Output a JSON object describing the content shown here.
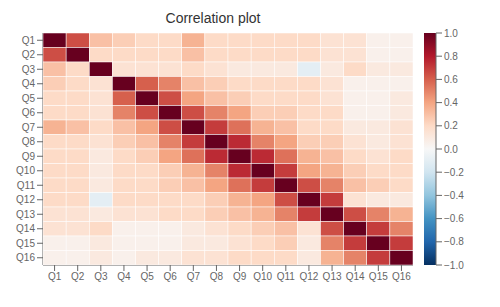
{
  "chart_data": {
    "type": "heatmap",
    "title": "Correlation plot",
    "categories": [
      "Q1",
      "Q2",
      "Q3",
      "Q4",
      "Q5",
      "Q6",
      "Q7",
      "Q8",
      "Q9",
      "Q10",
      "Q11",
      "Q12",
      "Q13",
      "Q14",
      "Q15",
      "Q16"
    ],
    "matrix": [
      [
        1.0,
        0.65,
        0.3,
        0.25,
        0.2,
        0.2,
        0.35,
        0.2,
        0.2,
        0.2,
        0.2,
        0.2,
        0.15,
        0.15,
        0.05,
        0.05
      ],
      [
        0.65,
        1.0,
        0.2,
        0.2,
        0.2,
        0.2,
        0.3,
        0.2,
        0.2,
        0.2,
        0.2,
        0.2,
        0.15,
        0.15,
        0.05,
        0.05
      ],
      [
        0.3,
        0.2,
        1.0,
        0.15,
        0.15,
        0.15,
        0.2,
        0.15,
        0.1,
        0.1,
        0.1,
        -0.1,
        0.1,
        0.2,
        0.1,
        0.1
      ],
      [
        0.25,
        0.2,
        0.15,
        1.0,
        0.6,
        0.5,
        0.3,
        0.25,
        0.2,
        0.2,
        0.2,
        0.2,
        0.15,
        0.05,
        0.05,
        0.05
      ],
      [
        0.2,
        0.2,
        0.15,
        0.6,
        1.0,
        0.65,
        0.4,
        0.3,
        0.25,
        0.2,
        0.2,
        0.2,
        0.15,
        0.05,
        0.05,
        0.1
      ],
      [
        0.2,
        0.2,
        0.15,
        0.5,
        0.65,
        1.0,
        0.65,
        0.5,
        0.4,
        0.25,
        0.25,
        0.2,
        0.2,
        0.05,
        0.05,
        0.1
      ],
      [
        0.35,
        0.3,
        0.2,
        0.3,
        0.4,
        0.65,
        1.0,
        0.7,
        0.55,
        0.35,
        0.3,
        0.2,
        0.2,
        0.1,
        0.1,
        0.15
      ],
      [
        0.2,
        0.2,
        0.15,
        0.25,
        0.3,
        0.5,
        0.7,
        1.0,
        0.75,
        0.5,
        0.4,
        0.25,
        0.25,
        0.15,
        0.1,
        0.15
      ],
      [
        0.2,
        0.2,
        0.1,
        0.2,
        0.25,
        0.4,
        0.55,
        0.75,
        1.0,
        0.75,
        0.55,
        0.35,
        0.3,
        0.2,
        0.15,
        0.2
      ],
      [
        0.2,
        0.2,
        0.1,
        0.2,
        0.2,
        0.25,
        0.35,
        0.5,
        0.75,
        1.0,
        0.7,
        0.4,
        0.35,
        0.25,
        0.2,
        0.2
      ],
      [
        0.2,
        0.2,
        0.1,
        0.2,
        0.2,
        0.25,
        0.3,
        0.4,
        0.55,
        0.7,
        1.0,
        0.65,
        0.5,
        0.3,
        0.25,
        0.2
      ],
      [
        0.2,
        0.2,
        -0.1,
        0.2,
        0.2,
        0.2,
        0.2,
        0.25,
        0.35,
        0.4,
        0.65,
        1.0,
        0.7,
        0.15,
        0.1,
        0.1
      ],
      [
        0.15,
        0.15,
        0.1,
        0.15,
        0.15,
        0.2,
        0.2,
        0.25,
        0.3,
        0.35,
        0.5,
        0.7,
        1.0,
        0.65,
        0.5,
        0.35
      ],
      [
        0.15,
        0.15,
        0.2,
        0.05,
        0.05,
        0.05,
        0.1,
        0.15,
        0.2,
        0.25,
        0.3,
        0.15,
        0.65,
        1.0,
        0.7,
        0.5
      ],
      [
        0.05,
        0.05,
        0.1,
        0.05,
        0.05,
        0.05,
        0.1,
        0.1,
        0.15,
        0.2,
        0.25,
        0.1,
        0.5,
        0.7,
        1.0,
        0.7
      ],
      [
        0.05,
        0.05,
        0.1,
        0.05,
        0.1,
        0.1,
        0.15,
        0.15,
        0.2,
        0.2,
        0.2,
        0.1,
        0.35,
        0.5,
        0.7,
        1.0
      ]
    ],
    "colorbar_range": [
      -1.0,
      1.0
    ],
    "colorbar_ticks": [
      {
        "value": 1,
        "label": "1.0"
      },
      {
        "value": 0.8,
        "label": "0.8"
      },
      {
        "value": 0.6,
        "label": "0.6"
      },
      {
        "value": 0.4,
        "label": "0.4"
      },
      {
        "value": 0.2,
        "label": "0.2"
      },
      {
        "value": 0,
        "label": "0.0"
      },
      {
        "value": -0.2,
        "label": "−0.2"
      },
      {
        "value": -0.4,
        "label": "−0.4"
      },
      {
        "value": -0.6,
        "label": "−0.6"
      },
      {
        "value": -0.8,
        "label": "−0.8"
      },
      {
        "value": -1,
        "label": "−1.0"
      }
    ],
    "grid": true
  }
}
